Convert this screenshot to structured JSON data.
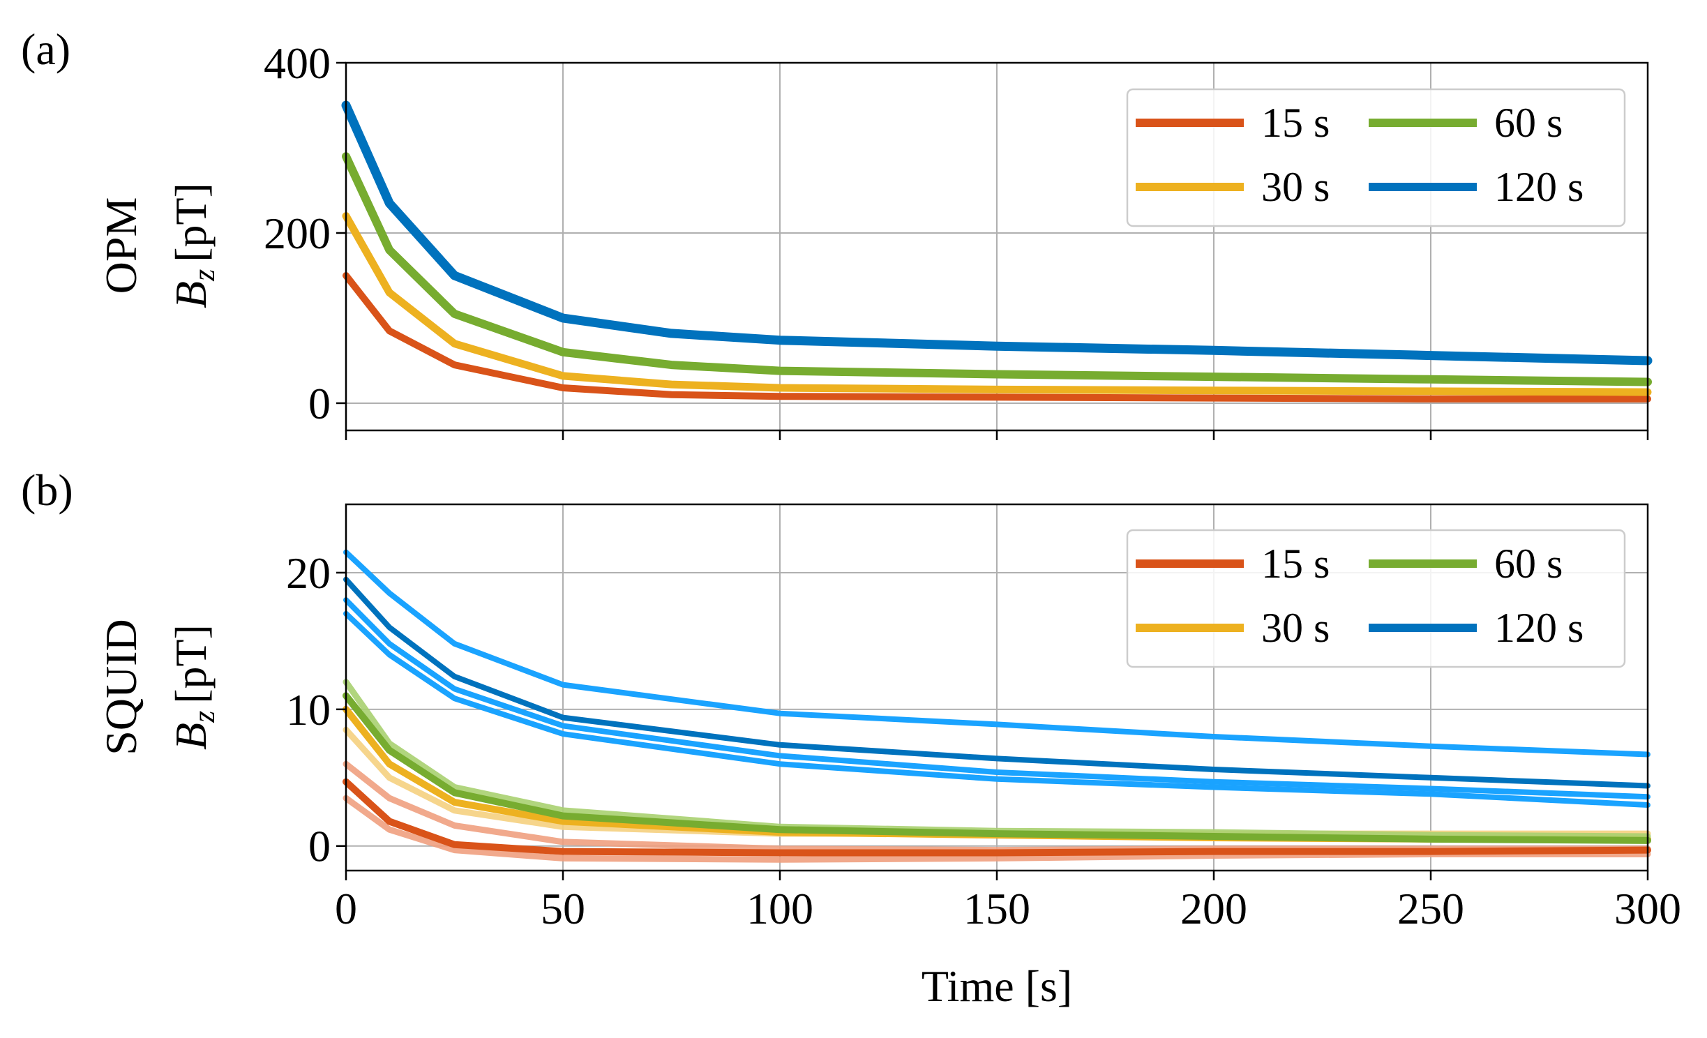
{
  "chart_data": [
    {
      "type": "line",
      "panel_label": "(a)",
      "ylabel_line1": "OPM",
      "ylabel_symbol": "B",
      "ylabel_subscript": "z",
      "ylabel_unit": "[pT]",
      "xlabel": "",
      "xlim": [
        0,
        300
      ],
      "ylim": [
        -32,
        400
      ],
      "xticks": [
        0,
        50,
        100,
        150,
        200,
        250,
        300
      ],
      "yticks": [
        0,
        200,
        400
      ],
      "grid": true,
      "legend_position": "top-right",
      "legend": [
        {
          "label": "15 s",
          "color": "#d95319"
        },
        {
          "label": "30 s",
          "color": "#edb120"
        },
        {
          "label": "60 s",
          "color": "#77ac30"
        },
        {
          "label": "120 s",
          "color": "#0072bd"
        }
      ],
      "series": [
        {
          "name": "15 s",
          "color": "#d95319",
          "width": 10,
          "opacity": 1,
          "x": [
            0,
            10,
            25,
            50,
            75,
            100,
            150,
            200,
            250,
            300
          ],
          "y": [
            150,
            85,
            45,
            18,
            10,
            8,
            7,
            6,
            5,
            5
          ]
        },
        {
          "name": "30 s",
          "color": "#edb120",
          "width": 11,
          "opacity": 1,
          "x": [
            0,
            10,
            25,
            50,
            75,
            100,
            150,
            200,
            250,
            300
          ],
          "y": [
            220,
            130,
            70,
            32,
            22,
            18,
            16,
            15,
            14,
            13
          ]
        },
        {
          "name": "60 s",
          "color": "#77ac30",
          "width": 12,
          "opacity": 1,
          "x": [
            0,
            10,
            25,
            50,
            75,
            100,
            150,
            200,
            250,
            300
          ],
          "y": [
            290,
            180,
            105,
            60,
            45,
            38,
            34,
            31,
            28,
            25
          ]
        },
        {
          "name": "120 s",
          "color": "#0072bd",
          "width": 13,
          "opacity": 1,
          "x": [
            0,
            10,
            25,
            50,
            75,
            100,
            150,
            200,
            250,
            300
          ],
          "y": [
            350,
            235,
            150,
            100,
            82,
            74,
            67,
            62,
            56,
            50
          ]
        }
      ]
    },
    {
      "type": "line",
      "panel_label": "(b)",
      "ylabel_line1": "SQUID",
      "ylabel_symbol": "B",
      "ylabel_subscript": "z",
      "ylabel_unit": "[pT]",
      "xlabel": "Time [s]",
      "xlim": [
        0,
        300
      ],
      "ylim": [
        -1.8,
        25
      ],
      "xticks": [
        0,
        50,
        100,
        150,
        200,
        250,
        300
      ],
      "yticks": [
        0,
        10,
        20
      ],
      "grid": true,
      "legend_position": "top-right",
      "legend": [
        {
          "label": "15 s",
          "color": "#d95319"
        },
        {
          "label": "30 s",
          "color": "#edb120"
        },
        {
          "label": "60 s",
          "color": "#77ac30"
        },
        {
          "label": "120 s",
          "color": "#0072bd"
        }
      ],
      "series": [
        {
          "name": "15 s",
          "color": "#f0a080",
          "width": 9,
          "opacity": 0.9,
          "x": [
            0,
            10,
            25,
            50,
            100,
            150,
            200,
            250,
            300
          ],
          "y": [
            3.5,
            1.2,
            -0.3,
            -0.9,
            -1.0,
            -0.9,
            -0.7,
            -0.6,
            -0.6
          ]
        },
        {
          "name": "15 s",
          "color": "#f0a080",
          "width": 9,
          "opacity": 0.9,
          "x": [
            0,
            10,
            25,
            50,
            100,
            150,
            200,
            250,
            300
          ],
          "y": [
            6.0,
            3.5,
            1.5,
            0.3,
            -0.2,
            -0.3,
            -0.2,
            -0.2,
            -0.2
          ]
        },
        {
          "name": "15 s",
          "color": "#d95319",
          "width": 10,
          "opacity": 1,
          "x": [
            0,
            10,
            25,
            50,
            100,
            150,
            200,
            250,
            300
          ],
          "y": [
            4.7,
            1.8,
            0.1,
            -0.4,
            -0.5,
            -0.5,
            -0.4,
            -0.4,
            -0.3
          ]
        },
        {
          "name": "30 s",
          "color": "#f5d080",
          "width": 9,
          "opacity": 0.9,
          "x": [
            0,
            10,
            25,
            50,
            100,
            150,
            200,
            250,
            300
          ],
          "y": [
            8.5,
            5.0,
            2.6,
            1.4,
            0.9,
            0.9,
            0.9,
            0.9,
            0.9
          ]
        },
        {
          "name": "30 s",
          "color": "#edb120",
          "width": 10,
          "opacity": 1,
          "x": [
            0,
            10,
            25,
            50,
            100,
            150,
            200,
            250,
            300
          ],
          "y": [
            10.0,
            6.0,
            3.2,
            1.8,
            1.0,
            0.8,
            0.6,
            0.5,
            0.5
          ]
        },
        {
          "name": "60 s",
          "color": "#a8d070",
          "width": 9,
          "opacity": 0.9,
          "x": [
            0,
            10,
            25,
            50,
            100,
            150,
            200,
            250,
            300
          ],
          "y": [
            12.0,
            7.5,
            4.3,
            2.6,
            1.4,
            1.1,
            1.0,
            0.8,
            0.7
          ]
        },
        {
          "name": "60 s",
          "color": "#77ac30",
          "width": 10,
          "opacity": 1,
          "x": [
            0,
            10,
            25,
            50,
            100,
            150,
            200,
            250,
            300
          ],
          "y": [
            11.0,
            7.0,
            3.9,
            2.2,
            1.2,
            0.9,
            0.7,
            0.5,
            0.4
          ]
        },
        {
          "name": "120 s",
          "color": "#1aa3ff",
          "width": 8,
          "opacity": 1,
          "x": [
            0,
            10,
            25,
            50,
            100,
            150,
            200,
            250,
            300
          ],
          "y": [
            21.5,
            18.5,
            14.8,
            11.8,
            9.7,
            8.9,
            8.0,
            7.3,
            6.7
          ]
        },
        {
          "name": "120 s",
          "color": "#1aa3ff",
          "width": 8,
          "opacity": 1,
          "x": [
            0,
            10,
            25,
            50,
            100,
            150,
            200,
            250,
            300
          ],
          "y": [
            17.0,
            14.0,
            10.8,
            8.2,
            6.0,
            4.9,
            4.3,
            3.8,
            3.0
          ]
        },
        {
          "name": "120 s",
          "color": "#1aa3ff",
          "width": 8,
          "opacity": 1,
          "x": [
            0,
            10,
            25,
            50,
            100,
            150,
            200,
            250,
            300
          ],
          "y": [
            18.0,
            14.8,
            11.5,
            8.8,
            6.6,
            5.4,
            4.7,
            4.2,
            3.6
          ]
        },
        {
          "name": "120 s",
          "color": "#0072bd",
          "width": 8,
          "opacity": 1,
          "x": [
            0,
            10,
            25,
            50,
            100,
            150,
            200,
            250,
            300
          ],
          "y": [
            19.5,
            16.0,
            12.4,
            9.4,
            7.4,
            6.4,
            5.6,
            5.0,
            4.4
          ]
        }
      ]
    }
  ]
}
